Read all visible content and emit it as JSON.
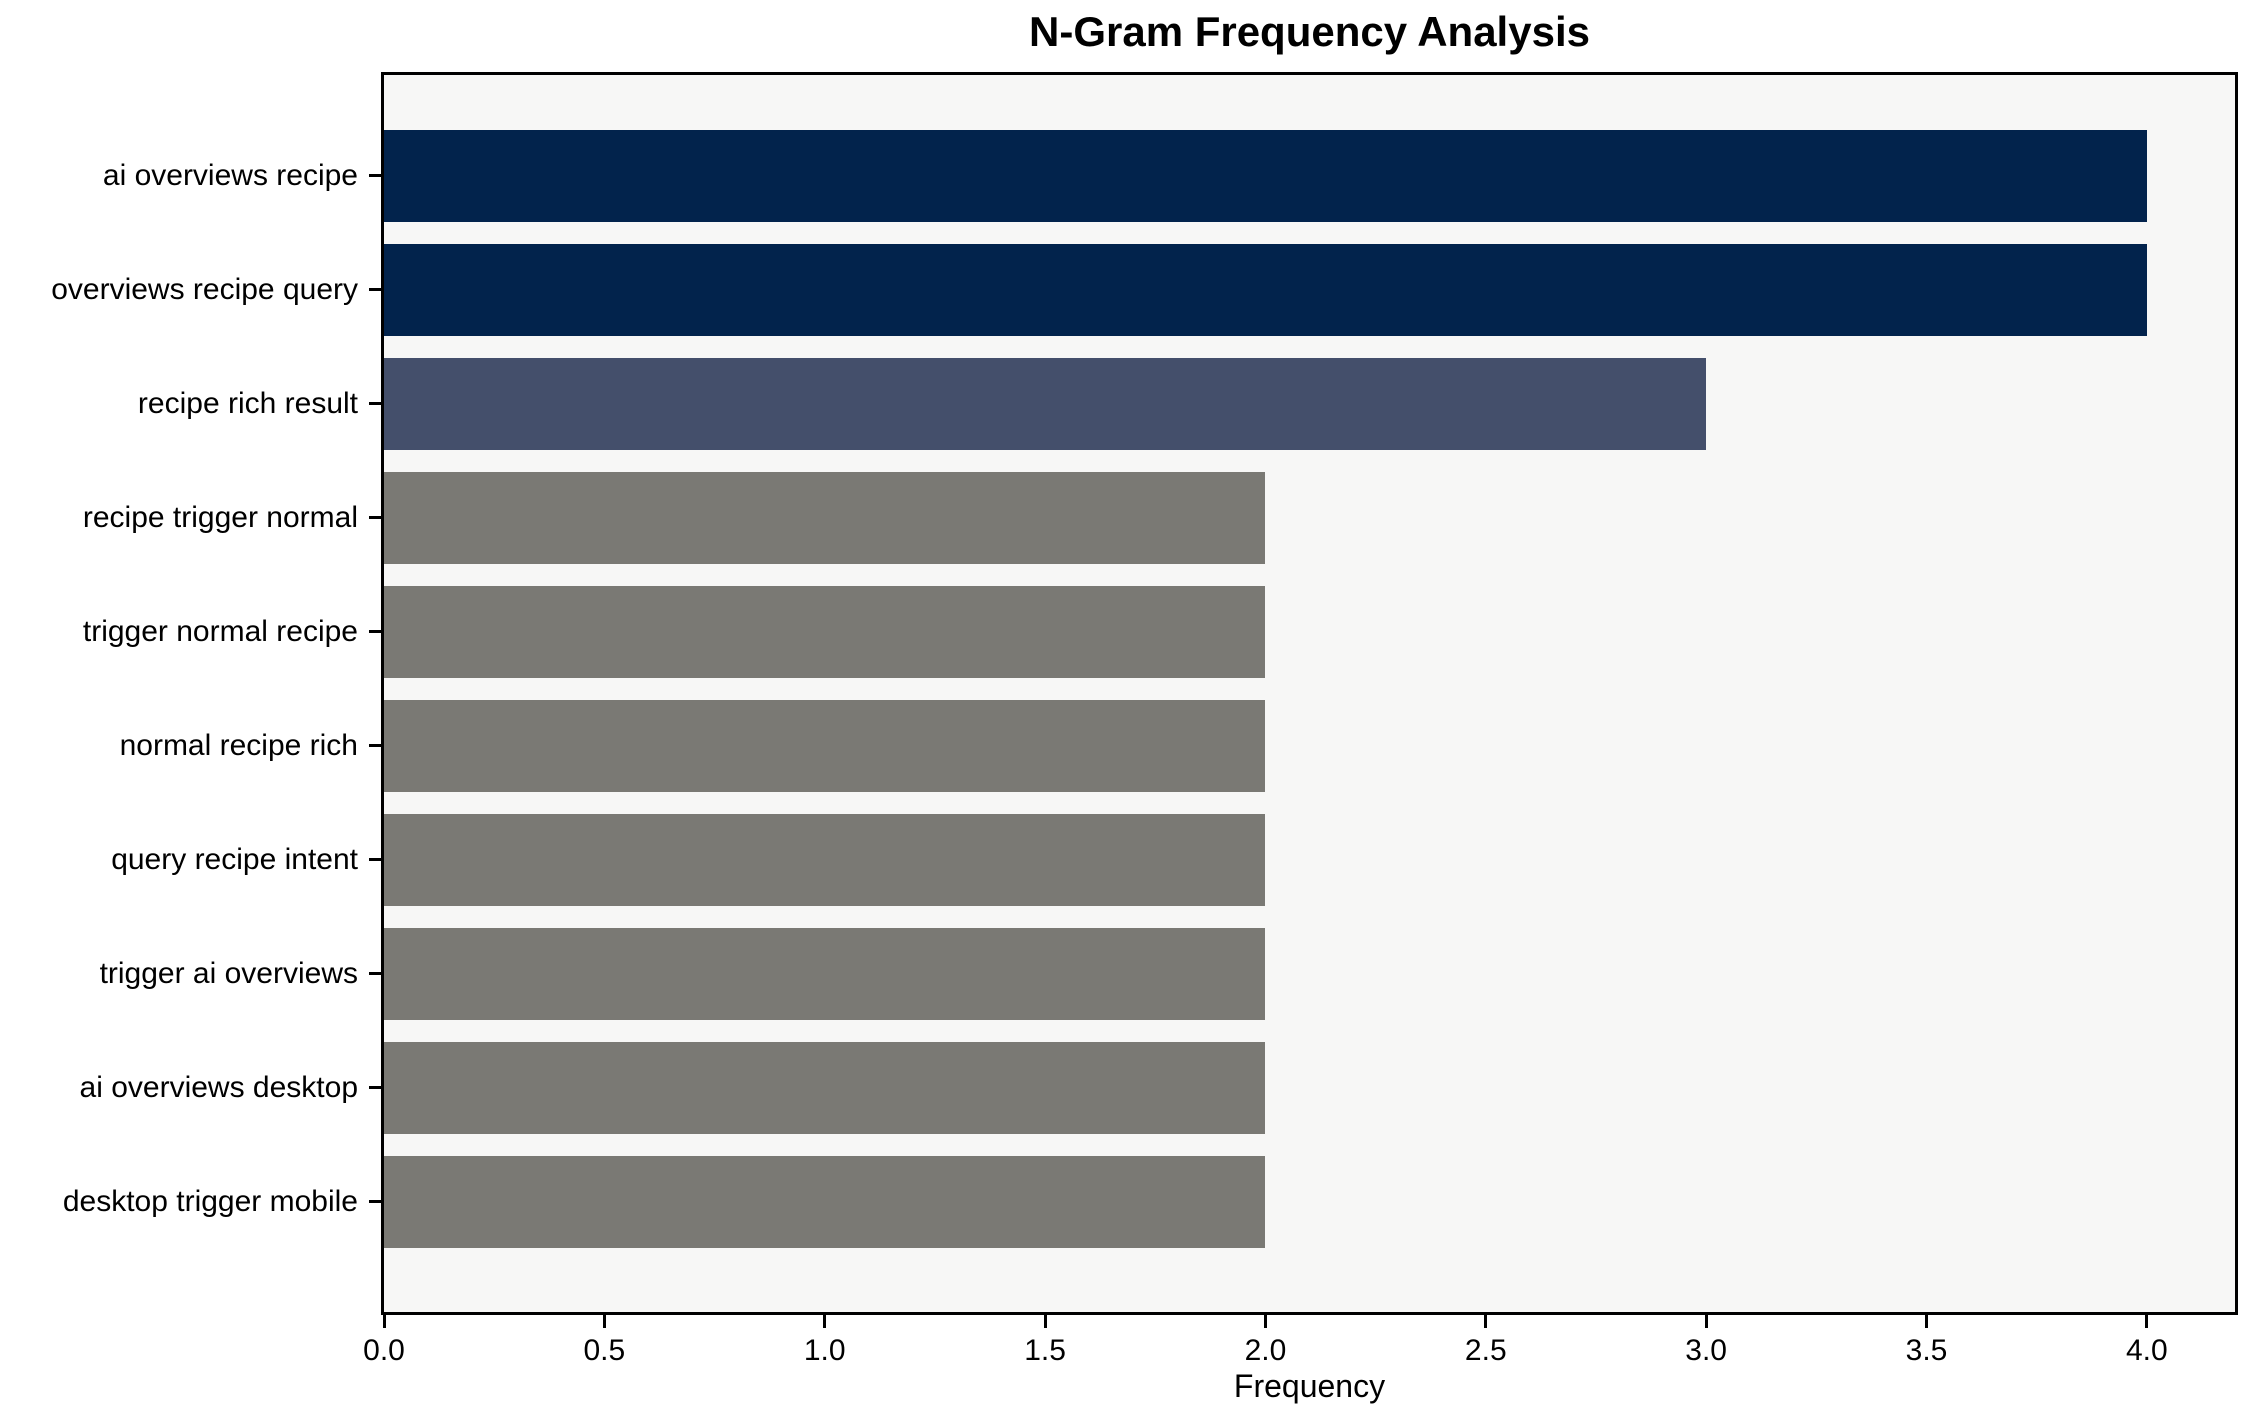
{
  "figure": {
    "background": "#ffffff",
    "plot_background": "#f7f7f6",
    "spine_color": "#000000",
    "text_color": "#000000"
  },
  "chart_data": {
    "type": "bar",
    "orientation": "horizontal",
    "title": "N-Gram Frequency Analysis",
    "xlabel": "Frequency",
    "ylabel": "",
    "categories": [
      "ai overviews recipe",
      "overviews recipe query",
      "recipe rich result",
      "recipe trigger normal",
      "trigger normal recipe",
      "normal recipe rich",
      "query recipe intent",
      "trigger ai overviews",
      "ai overviews desktop",
      "desktop trigger mobile"
    ],
    "values": [
      4,
      4,
      3,
      2,
      2,
      2,
      2,
      2,
      2,
      2
    ],
    "bar_colors": [
      "#02234c",
      "#02234c",
      "#444f6b",
      "#7a7974",
      "#7a7974",
      "#7a7974",
      "#7a7974",
      "#7a7974",
      "#7a7974",
      "#7a7974"
    ],
    "xlim": [
      0,
      4.2
    ],
    "xticks": [
      0.0,
      0.5,
      1.0,
      1.5,
      2.0,
      2.5,
      3.0,
      3.5,
      4.0
    ],
    "xtick_labels": [
      "0.0",
      "0.5",
      "1.0",
      "1.5",
      "2.0",
      "2.5",
      "3.0",
      "3.5",
      "4.0"
    ],
    "grid": false,
    "legend": null
  }
}
